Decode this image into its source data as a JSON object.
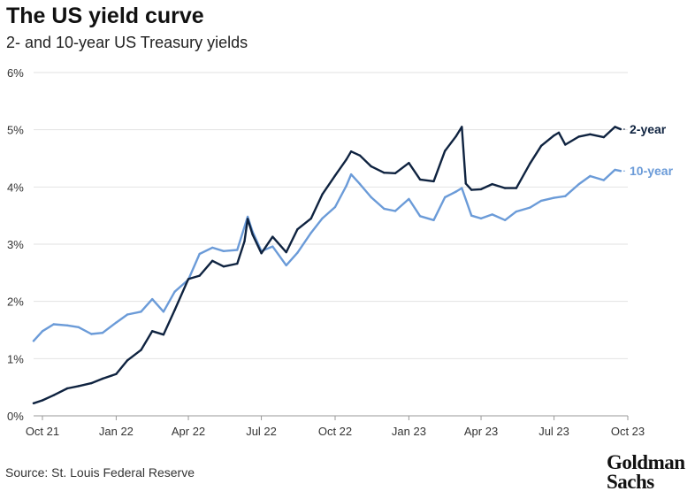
{
  "header": {
    "title": "The US yield curve",
    "subtitle": "2- and 10-year US Treasury yields"
  },
  "footer": {
    "source": "Source: St. Louis Federal Reserve",
    "logo_line1": "Goldman",
    "logo_line2": "Sachs"
  },
  "colors": {
    "two_year": "#0f2340",
    "ten_year": "#6b9bd8",
    "grid": "#e2e2e2",
    "axis": "#999999"
  },
  "chart_data": {
    "type": "line",
    "title": "The US yield curve",
    "subtitle": "2- and 10-year US Treasury yields",
    "xlabel": "",
    "ylabel": "",
    "x_ticks": [
      "Oct 21",
      "Jan 22",
      "Apr 22",
      "Jul 22",
      "Oct 22",
      "Jan 23",
      "Apr 23",
      "Jul 23",
      "Oct 23"
    ],
    "y_ticks": [
      "0%",
      "1%",
      "2%",
      "3%",
      "4%",
      "5%",
      "6%"
    ],
    "ylim": [
      0,
      6
    ],
    "xlim": [
      "2021-09-20",
      "2023-10-01"
    ],
    "grid": "horizontal",
    "legend": "inline labels at right end of lines",
    "series": [
      {
        "name": "2-year",
        "color": "#0f2340",
        "x": [
          "2021-09-20",
          "2021-10-01",
          "2021-10-15",
          "2021-11-01",
          "2021-11-15",
          "2021-12-01",
          "2021-12-15",
          "2022-01-01",
          "2022-01-15",
          "2022-02-01",
          "2022-02-15",
          "2022-03-01",
          "2022-03-15",
          "2022-04-01",
          "2022-04-15",
          "2022-05-01",
          "2022-05-15",
          "2022-06-01",
          "2022-06-10",
          "2022-06-14",
          "2022-06-20",
          "2022-07-01",
          "2022-07-15",
          "2022-08-01",
          "2022-08-15",
          "2022-09-01",
          "2022-09-15",
          "2022-10-01",
          "2022-10-15",
          "2022-10-21",
          "2022-11-01",
          "2022-11-15",
          "2022-12-01",
          "2022-12-15",
          "2023-01-01",
          "2023-01-15",
          "2023-02-01",
          "2023-02-15",
          "2023-03-01",
          "2023-03-08",
          "2023-03-13",
          "2023-03-20",
          "2023-04-01",
          "2023-04-15",
          "2023-05-01",
          "2023-05-15",
          "2023-06-01",
          "2023-06-15",
          "2023-07-01",
          "2023-07-07",
          "2023-07-15",
          "2023-08-01",
          "2023-08-15",
          "2023-09-01",
          "2023-09-15",
          "2023-09-22"
        ],
        "values": [
          0.22,
          0.27,
          0.36,
          0.48,
          0.52,
          0.57,
          0.65,
          0.73,
          0.97,
          1.15,
          1.48,
          1.42,
          1.85,
          2.39,
          2.45,
          2.71,
          2.61,
          2.66,
          3.05,
          3.44,
          3.17,
          2.84,
          3.13,
          2.86,
          3.26,
          3.45,
          3.87,
          4.2,
          4.48,
          4.62,
          4.55,
          4.36,
          4.25,
          4.24,
          4.42,
          4.13,
          4.1,
          4.63,
          4.89,
          5.05,
          4.06,
          3.95,
          3.96,
          4.05,
          3.98,
          3.98,
          4.41,
          4.72,
          4.9,
          4.95,
          4.74,
          4.88,
          4.92,
          4.87,
          5.05,
          5.01
        ]
      },
      {
        "name": "10-year",
        "color": "#6b9bd8",
        "x": [
          "2021-09-20",
          "2021-10-01",
          "2021-10-15",
          "2021-11-01",
          "2021-11-15",
          "2021-12-01",
          "2021-12-15",
          "2022-01-01",
          "2022-01-15",
          "2022-02-01",
          "2022-02-15",
          "2022-03-01",
          "2022-03-15",
          "2022-04-01",
          "2022-04-15",
          "2022-05-01",
          "2022-05-15",
          "2022-06-01",
          "2022-06-14",
          "2022-06-20",
          "2022-07-01",
          "2022-07-15",
          "2022-08-01",
          "2022-08-15",
          "2022-09-01",
          "2022-09-15",
          "2022-10-01",
          "2022-10-15",
          "2022-10-21",
          "2022-11-01",
          "2022-11-15",
          "2022-12-01",
          "2022-12-15",
          "2023-01-01",
          "2023-01-15",
          "2023-02-01",
          "2023-02-15",
          "2023-03-01",
          "2023-03-08",
          "2023-03-20",
          "2023-04-01",
          "2023-04-15",
          "2023-05-01",
          "2023-05-15",
          "2023-06-01",
          "2023-06-15",
          "2023-07-01",
          "2023-07-15",
          "2023-08-01",
          "2023-08-15",
          "2023-09-01",
          "2023-09-15",
          "2023-09-22"
        ],
        "values": [
          1.31,
          1.48,
          1.6,
          1.58,
          1.55,
          1.43,
          1.45,
          1.63,
          1.77,
          1.82,
          2.04,
          1.82,
          2.17,
          2.38,
          2.83,
          2.94,
          2.88,
          2.9,
          3.48,
          3.22,
          2.88,
          2.96,
          2.63,
          2.85,
          3.2,
          3.45,
          3.65,
          4.02,
          4.22,
          4.05,
          3.82,
          3.62,
          3.58,
          3.79,
          3.49,
          3.42,
          3.82,
          3.92,
          3.98,
          3.5,
          3.45,
          3.52,
          3.42,
          3.57,
          3.64,
          3.76,
          3.81,
          3.84,
          4.05,
          4.19,
          4.12,
          4.3,
          4.28
        ]
      }
    ],
    "end_labels": [
      "2-year",
      "10-year"
    ]
  }
}
